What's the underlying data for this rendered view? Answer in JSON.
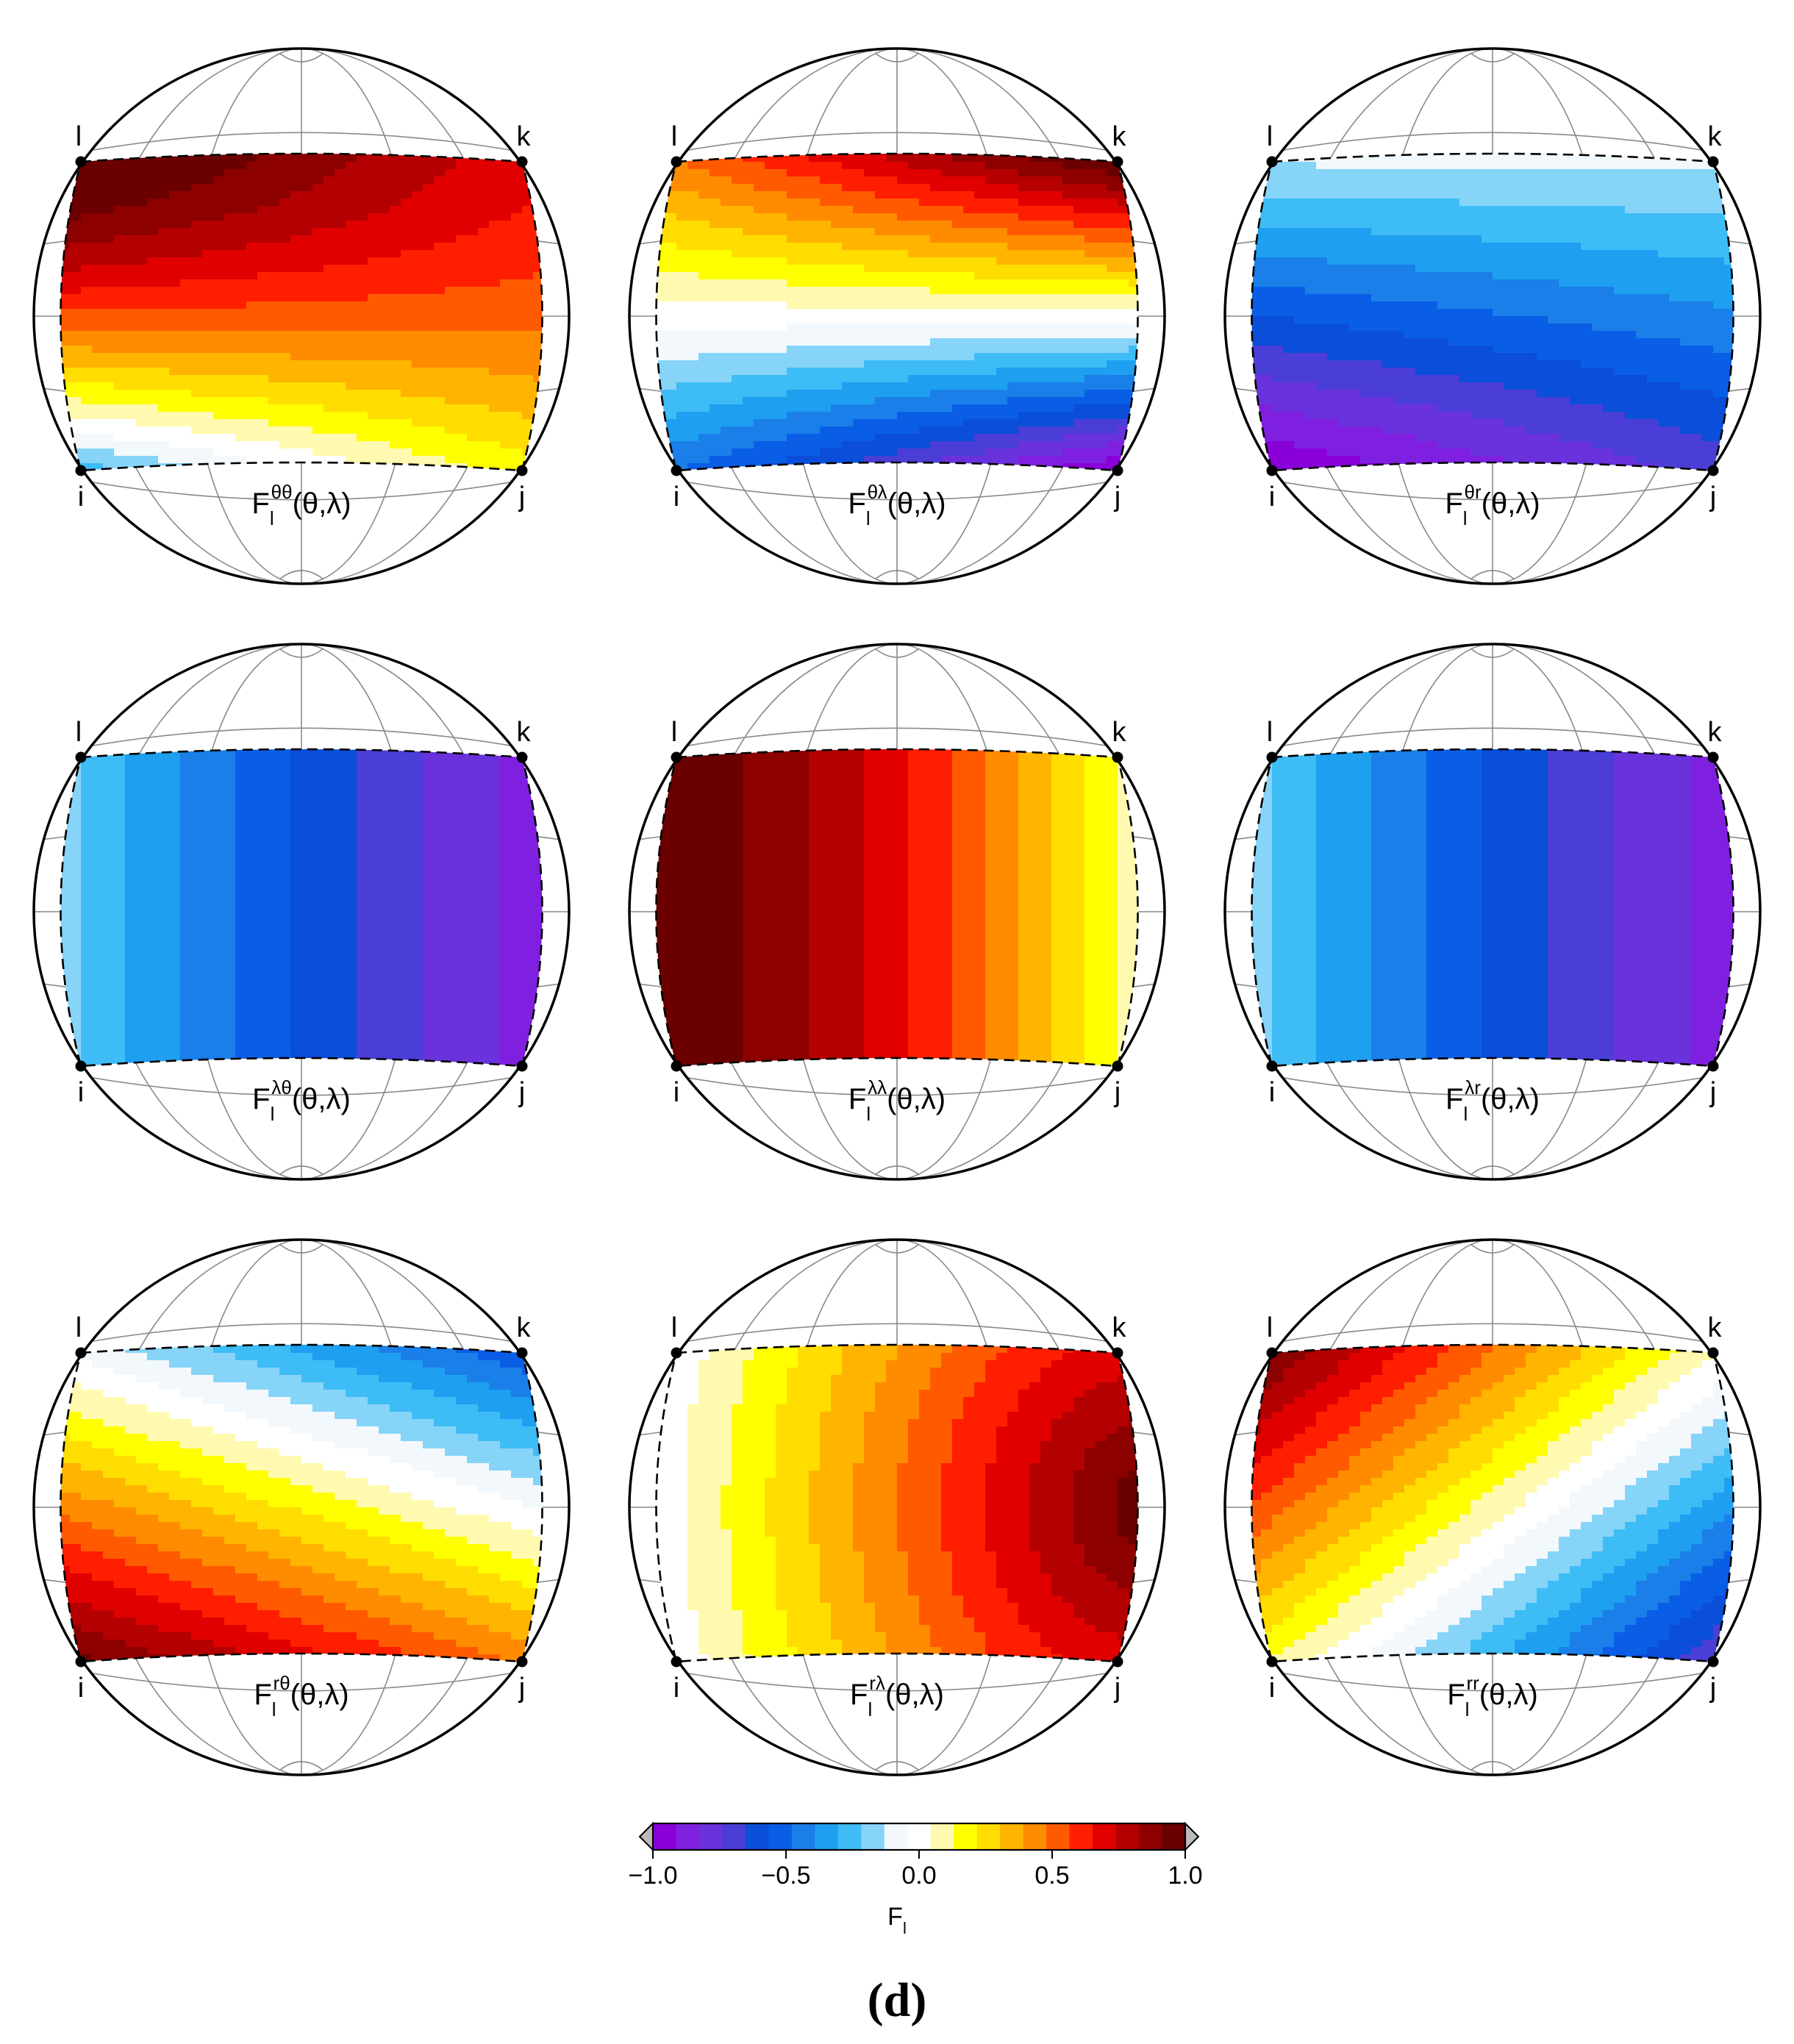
{
  "figure": {
    "panel_label": "(d)",
    "corner_labels": {
      "i": "i",
      "j": "j",
      "k": "k",
      "l": "l"
    },
    "panels": [
      {
        "id": "theta-theta",
        "base": "F",
        "sub": "l",
        "sup": "θθ",
        "args": "(θ,λ)",
        "pattern": "thth"
      },
      {
        "id": "theta-lambda",
        "base": "F",
        "sub": "l",
        "sup": "θλ",
        "args": "(θ,λ)",
        "pattern": "thla"
      },
      {
        "id": "theta-r",
        "base": "F",
        "sub": "l",
        "sup": "θr",
        "args": "(θ,λ)",
        "pattern": "thr"
      },
      {
        "id": "lambda-theta",
        "base": "F",
        "sub": "l",
        "sup": "λθ",
        "args": "(θ,λ)",
        "pattern": "lath"
      },
      {
        "id": "lambda-lambda",
        "base": "F",
        "sub": "l",
        "sup": "λλ",
        "args": "(θ,λ)",
        "pattern": "lala"
      },
      {
        "id": "lambda-r",
        "base": "F",
        "sub": "l",
        "sup": "λr",
        "args": "(θ,λ)",
        "pattern": "lar"
      },
      {
        "id": "r-theta",
        "base": "F",
        "sub": "l",
        "sup": "rθ",
        "args": "(θ,λ)",
        "pattern": "rth"
      },
      {
        "id": "r-lambda",
        "base": "F",
        "sub": "l",
        "sup": "rλ",
        "args": "(θ,λ)",
        "pattern": "rla"
      },
      {
        "id": "r-r",
        "base": "F",
        "sub": "l",
        "sup": "rr",
        "args": "(θ,λ)",
        "pattern": "rr"
      }
    ]
  },
  "colorbar": {
    "min": -1.0,
    "max": 1.0,
    "ticks": [
      "−1.0",
      "−0.5",
      "0.0",
      "0.5",
      "1.0"
    ],
    "tick_values": [
      -1.0,
      -0.5,
      0.0,
      0.5,
      1.0
    ],
    "label_base": "F",
    "label_sub": "l",
    "colors": [
      "#8a00d8",
      "#7f20e0",
      "#6a32dc",
      "#4a3ed6",
      "#0a4ed9",
      "#0a5ee6",
      "#1a7fe8",
      "#1e9ff0",
      "#3ebcf6",
      "#86d4f8",
      "#f2f8fc",
      "#ffffff",
      "#fffab0",
      "#ffff00",
      "#ffdd00",
      "#ffb400",
      "#ff8c00",
      "#ff5a00",
      "#ff1e00",
      "#e00000",
      "#b40000",
      "#8c0000",
      "#6a0000"
    ]
  }
}
